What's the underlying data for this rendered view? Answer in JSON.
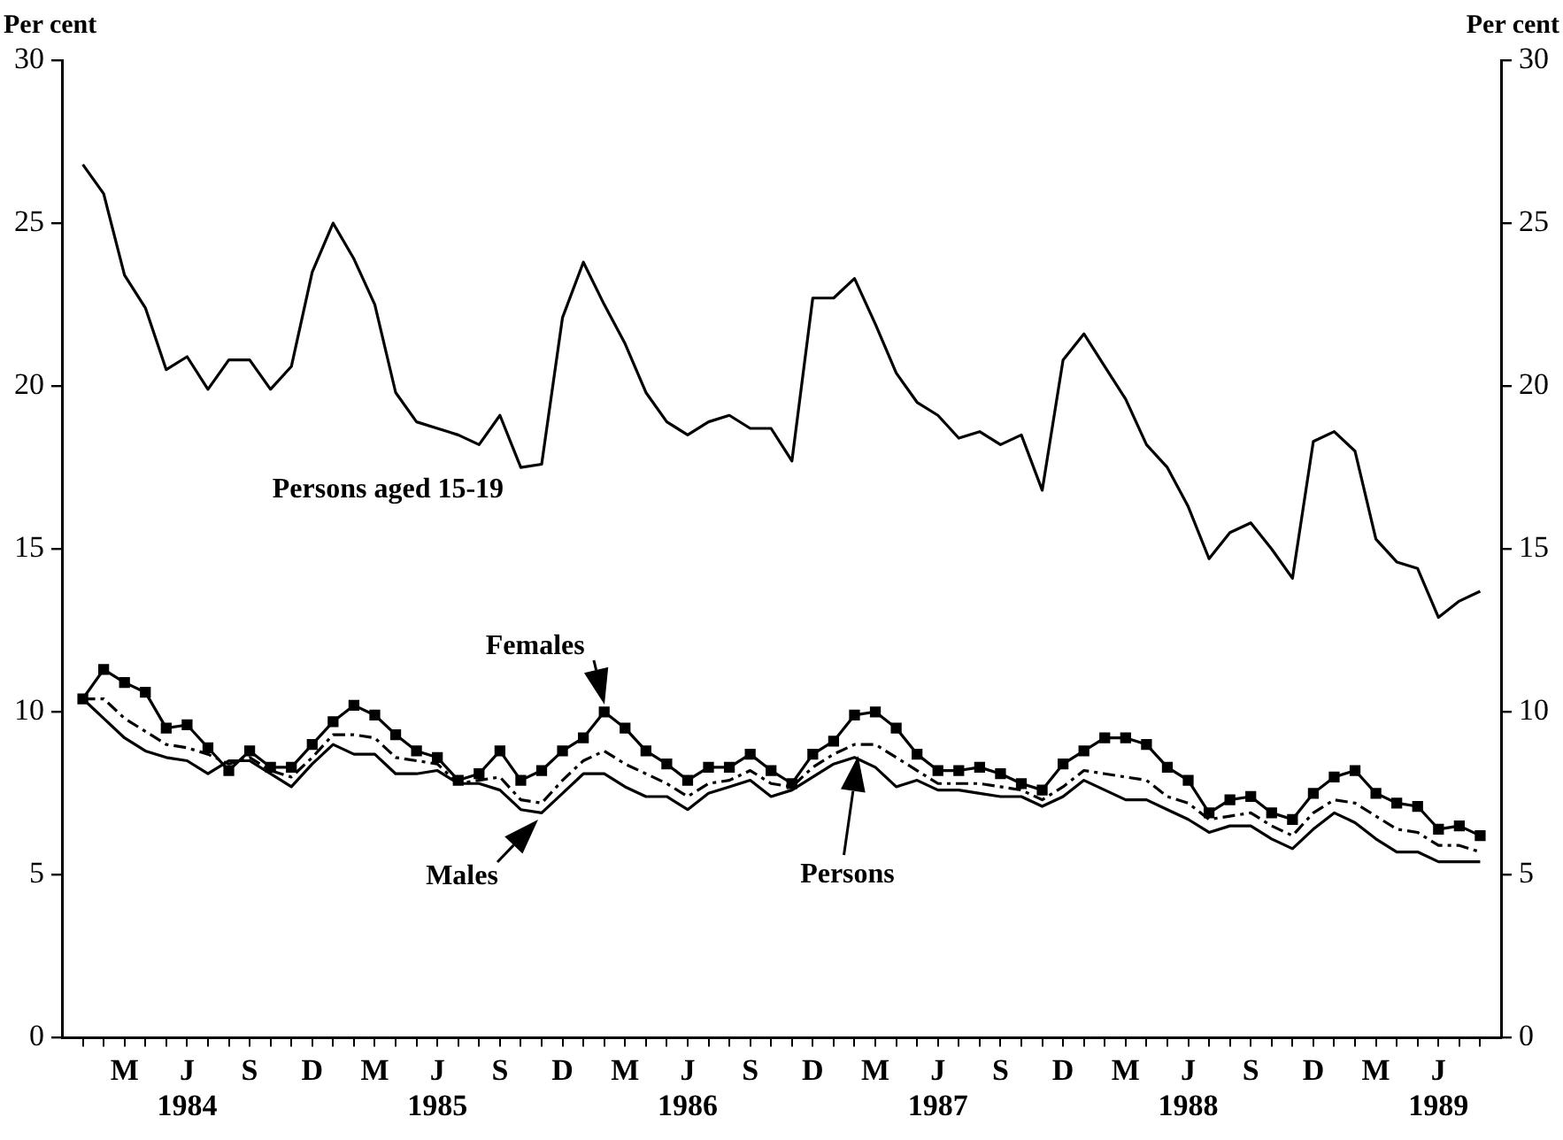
{
  "chart_data": {
    "type": "line",
    "ylabel": "Per cent",
    "y2label": "Per cent",
    "x": [
      "1984-01",
      "1984-02",
      "1984-03",
      "1984-04",
      "1984-05",
      "1984-06",
      "1984-07",
      "1984-08",
      "1984-09",
      "1984-10",
      "1984-11",
      "1984-12",
      "1985-01",
      "1985-02",
      "1985-03",
      "1985-04",
      "1985-05",
      "1985-06",
      "1985-07",
      "1985-08",
      "1985-09",
      "1985-10",
      "1985-11",
      "1985-12",
      "1986-01",
      "1986-02",
      "1986-03",
      "1986-04",
      "1986-05",
      "1986-06",
      "1986-07",
      "1986-08",
      "1986-09",
      "1986-10",
      "1986-11",
      "1986-12",
      "1987-01",
      "1987-02",
      "1987-03",
      "1987-04",
      "1987-05",
      "1987-06",
      "1987-07",
      "1987-08",
      "1987-09",
      "1987-10",
      "1987-11",
      "1987-12",
      "1988-01",
      "1988-02",
      "1988-03",
      "1988-04",
      "1988-05",
      "1988-06",
      "1988-07",
      "1988-08",
      "1988-09",
      "1988-10",
      "1988-11",
      "1988-12",
      "1989-01",
      "1989-02",
      "1989-03",
      "1989-04",
      "1989-05",
      "1989-06",
      "1989-07",
      "1989-08"
    ],
    "series": [
      {
        "color": "#000000",
        "marker": "none",
        "line_style": "solid",
        "values": [
          26.8,
          25.9,
          23.4,
          22.4,
          20.5,
          20.9,
          19.9,
          20.8,
          20.8,
          19.9,
          20.6,
          23.5,
          25.0,
          23.9,
          22.5,
          19.8,
          18.9,
          18.7,
          18.5,
          18.2,
          19.1,
          17.5,
          17.6,
          22.1,
          23.8,
          22.5,
          21.3,
          19.8,
          18.9,
          18.5,
          18.9,
          19.1,
          18.7,
          18.7,
          17.7,
          22.7,
          22.7,
          23.3,
          21.9,
          20.4,
          19.5,
          19.1,
          18.4,
          18.6,
          18.2,
          18.5,
          16.8,
          20.8,
          21.6,
          20.6,
          19.6,
          18.2,
          17.5,
          16.3,
          14.7,
          15.5,
          15.8,
          15.0,
          14.1,
          18.3,
          18.6,
          18.0,
          15.3,
          14.6,
          14.4,
          12.9,
          13.4,
          13.7
        ]
      },
      {
        "color": "#000000",
        "marker": "square",
        "line_style": "solid",
        "values": [
          10.4,
          11.3,
          10.9,
          10.6,
          9.5,
          9.6,
          8.9,
          8.2,
          8.8,
          8.3,
          8.3,
          9.0,
          9.7,
          10.2,
          9.9,
          9.3,
          8.8,
          8.6,
          7.9,
          8.1,
          8.8,
          7.9,
          8.2,
          8.8,
          9.2,
          10.0,
          9.5,
          8.8,
          8.4,
          7.9,
          8.3,
          8.3,
          8.7,
          8.2,
          7.8,
          8.7,
          9.1,
          9.9,
          10.0,
          9.5,
          8.7,
          8.2,
          8.2,
          8.3,
          8.1,
          7.8,
          7.6,
          8.4,
          8.8,
          9.2,
          9.2,
          9.0,
          8.3,
          7.9,
          6.9,
          7.3,
          7.4,
          6.9,
          6.7,
          7.5,
          8.0,
          8.2,
          7.5,
          7.2,
          7.1,
          6.4,
          6.5,
          6.2
        ]
      },
      {
        "color": "#000000",
        "marker": "none",
        "line_style": "solid",
        "values": [
          10.4,
          9.8,
          9.2,
          8.8,
          8.6,
          8.5,
          8.1,
          8.5,
          8.5,
          8.1,
          7.7,
          8.4,
          9.0,
          8.7,
          8.7,
          8.1,
          8.1,
          8.2,
          7.8,
          7.8,
          7.6,
          7.0,
          6.9,
          7.5,
          8.1,
          8.1,
          7.7,
          7.4,
          7.4,
          7.0,
          7.5,
          7.7,
          7.9,
          7.4,
          7.6,
          8.0,
          8.4,
          8.6,
          8.3,
          7.7,
          7.9,
          7.6,
          7.6,
          7.5,
          7.4,
          7.4,
          7.1,
          7.4,
          7.9,
          7.6,
          7.3,
          7.3,
          7.0,
          6.7,
          6.3,
          6.5,
          6.5,
          6.1,
          5.8,
          6.4,
          6.9,
          6.6,
          6.1,
          5.7,
          5.7,
          5.4,
          5.4,
          5.4
        ]
      },
      {
        "color": "#000000",
        "marker": "none",
        "line_style": "dashed",
        "values": [
          10.4,
          10.4,
          9.8,
          9.4,
          9.0,
          8.9,
          8.7,
          8.4,
          8.6,
          8.2,
          8.0,
          8.6,
          9.3,
          9.3,
          9.2,
          8.6,
          8.5,
          8.4,
          7.8,
          7.9,
          8.0,
          7.3,
          7.2,
          7.9,
          8.5,
          8.8,
          8.4,
          8.1,
          7.8,
          7.4,
          7.8,
          7.9,
          8.2,
          7.8,
          7.7,
          8.3,
          8.7,
          9.0,
          9.0,
          8.6,
          8.2,
          7.8,
          7.8,
          7.8,
          7.7,
          7.6,
          7.3,
          7.7,
          8.2,
          8.1,
          8.0,
          7.9,
          7.4,
          7.2,
          6.7,
          6.8,
          6.9,
          6.5,
          6.2,
          6.9,
          7.3,
          7.2,
          6.8,
          6.4,
          6.3,
          5.9,
          5.9,
          5.7
        ]
      }
    ],
    "annotations": [
      "Persons aged 15-19",
      "Females",
      "Males",
      "Persons"
    ],
    "xlim": [
      "1983-12",
      "1989-09"
    ],
    "xticks": [
      {
        "value": "1984-01",
        "label": null
      },
      {
        "value": "1984-02",
        "label": null
      },
      {
        "value": "1984-03",
        "label": "M"
      },
      {
        "value": "1984-04",
        "label": null
      },
      {
        "value": "1984-05",
        "label": null
      },
      {
        "value": "1984-06",
        "label": "J\n1984"
      },
      {
        "value": "1984-07",
        "label": null
      },
      {
        "value": "1984-08",
        "label": null
      },
      {
        "value": "1984-09",
        "label": "S"
      },
      {
        "value": "1984-10",
        "label": null
      },
      {
        "value": "1984-11",
        "label": null
      },
      {
        "value": "1984-12",
        "label": "D"
      },
      {
        "value": "1985-01",
        "label": null
      },
      {
        "value": "1985-02",
        "label": null
      },
      {
        "value": "1985-03",
        "label": "M"
      },
      {
        "value": "1985-04",
        "label": null
      },
      {
        "value": "1985-05",
        "label": null
      },
      {
        "value": "1985-06",
        "label": "J\n1985"
      },
      {
        "value": "1985-07",
        "label": null
      },
      {
        "value": "1985-08",
        "label": null
      },
      {
        "value": "1985-09",
        "label": "S"
      },
      {
        "value": "1985-10",
        "label": null
      },
      {
        "value": "1985-11",
        "label": null
      },
      {
        "value": "1985-12",
        "label": "D"
      },
      {
        "value": "1986-01",
        "label": null
      },
      {
        "value": "1986-02",
        "label": null
      },
      {
        "value": "1986-03",
        "label": "M"
      },
      {
        "value": "1986-04",
        "label": null
      },
      {
        "value": "1986-05",
        "label": null
      },
      {
        "value": "1986-06",
        "label": "J\n1986"
      },
      {
        "value": "1986-07",
        "label": null
      },
      {
        "value": "1986-08",
        "label": null
      },
      {
        "value": "1986-09",
        "label": "S"
      },
      {
        "value": "1986-10",
        "label": null
      },
      {
        "value": "1986-11",
        "label": null
      },
      {
        "value": "1986-12",
        "label": "D"
      },
      {
        "value": "1987-01",
        "label": null
      },
      {
        "value": "1987-02",
        "label": null
      },
      {
        "value": "1987-03",
        "label": "M"
      },
      {
        "value": "1987-04",
        "label": null
      },
      {
        "value": "1987-05",
        "label": null
      },
      {
        "value": "1987-06",
        "label": "J\n1987"
      },
      {
        "value": "1987-07",
        "label": null
      },
      {
        "value": "1987-08",
        "label": null
      },
      {
        "value": "1987-09",
        "label": "S"
      },
      {
        "value": "1987-10",
        "label": null
      },
      {
        "value": "1987-11",
        "label": null
      },
      {
        "value": "1987-12",
        "label": "D"
      },
      {
        "value": "1988-01",
        "label": null
      },
      {
        "value": "1988-02",
        "label": null
      },
      {
        "value": "1988-03",
        "label": "M"
      },
      {
        "value": "1988-04",
        "label": null
      },
      {
        "value": "1988-05",
        "label": null
      },
      {
        "value": "1988-06",
        "label": "J\n1988"
      },
      {
        "value": "1988-07",
        "label": null
      },
      {
        "value": "1988-08",
        "label": null
      },
      {
        "value": "1988-09",
        "label": "S"
      },
      {
        "value": "1988-10",
        "label": null
      },
      {
        "value": "1988-11",
        "label": null
      },
      {
        "value": "1988-12",
        "label": "D"
      },
      {
        "value": "1989-01",
        "label": null
      },
      {
        "value": "1989-02",
        "label": null
      },
      {
        "value": "1989-03",
        "label": "M"
      },
      {
        "value": "1989-04",
        "label": null
      },
      {
        "value": "1989-05",
        "label": null
      },
      {
        "value": "1989-06",
        "label": "J\n1989"
      },
      {
        "value": "1989-07",
        "label": null
      },
      {
        "value": "1989-08",
        "label": null
      }
    ],
    "ylim": [
      0,
      30
    ],
    "yticks": [
      0,
      5,
      10,
      15,
      20,
      25,
      30
    ],
    "y2lim": [
      0,
      30
    ],
    "y2ticks": [
      0,
      5,
      10,
      15,
      20,
      25,
      30
    ],
    "grid": false,
    "legend": false
  }
}
